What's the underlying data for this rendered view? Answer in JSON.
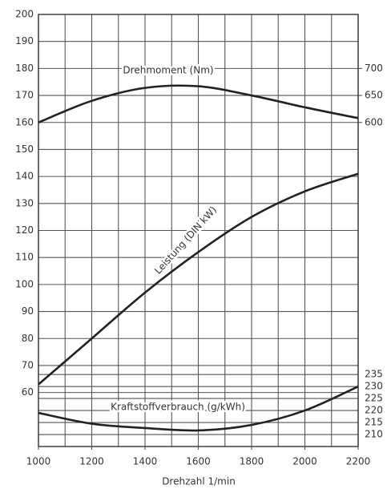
{
  "chart_data": {
    "type": "line",
    "xlabel": "Drehzahl 1/min",
    "x": [
      1000,
      1200,
      1400,
      1600,
      1800,
      2000,
      2200
    ],
    "xlim": [
      1000,
      2200
    ],
    "xticks": [
      1000,
      1200,
      1400,
      1600,
      1800,
      2000,
      2200
    ],
    "xgrid": [
      1000,
      1100,
      1200,
      1300,
      1400,
      1500,
      1600,
      1700,
      1800,
      1900,
      2000,
      2100,
      2200
    ],
    "ylim": [
      40,
      200
    ],
    "yticks": [
      200,
      190,
      180,
      170,
      160,
      150,
      140,
      130,
      120,
      110,
      100,
      90,
      80,
      70,
      60
    ],
    "y2lim": [
      0,
      800
    ],
    "y2ticks": [
      700,
      650,
      600
    ],
    "y3lim": [
      205,
      385
    ],
    "y3ticks": [
      235,
      230,
      225,
      220,
      215,
      210
    ],
    "grid": true,
    "series": [
      {
        "name": "Drehmoment (Nm)",
        "color": "#222222",
        "axis": "y2",
        "values": [
          600,
          640,
          664,
          667,
          650,
          628,
          608
        ]
      },
      {
        "name": "Leistung (DIN kW)",
        "color": "#222222",
        "values": [
          63,
          80,
          97,
          112,
          125,
          134.5,
          141
        ]
      },
      {
        "name": "Kraftstoffverbrauch (g/kWh)",
        "color": "#222222",
        "axis": "y3",
        "values": [
          219,
          214.5,
          212.7,
          211.7,
          214,
          220,
          230
        ]
      }
    ]
  }
}
